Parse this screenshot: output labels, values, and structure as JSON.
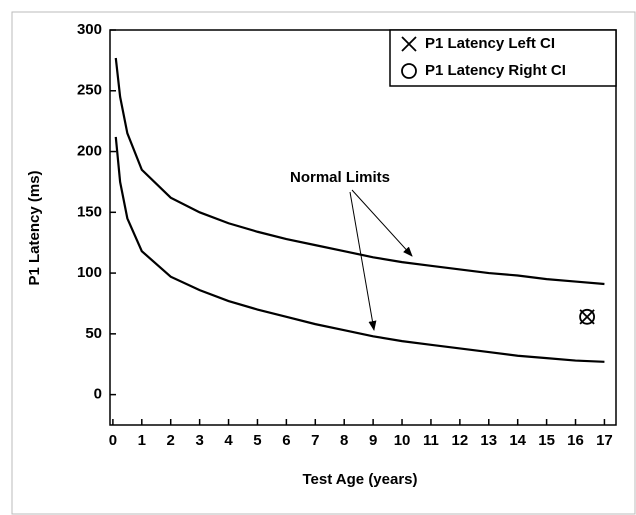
{
  "chart_data": {
    "type": "line",
    "xlabel": "Test Age (years)",
    "ylabel": "P1 Latency (ms)",
    "annotation": "Normal Limits",
    "xlim": [
      -0.1,
      17.4
    ],
    "ylim": [
      -25,
      300
    ],
    "xticks": [
      0,
      1,
      2,
      3,
      4,
      5,
      6,
      7,
      8,
      9,
      10,
      11,
      12,
      13,
      14,
      15,
      16,
      17
    ],
    "yticks": [
      0,
      50,
      100,
      150,
      200,
      250,
      300
    ],
    "legend": "upper right",
    "series": [
      {
        "type": "line",
        "color": "#000000",
        "x": [
          0.1,
          0.25,
          0.5,
          1,
          2,
          3,
          4,
          5,
          6,
          7,
          8,
          9,
          10,
          11,
          12,
          13,
          14,
          15,
          16,
          17
        ],
        "values": [
          277,
          245,
          215,
          185,
          162,
          150,
          141,
          134,
          128,
          123,
          118,
          113,
          109,
          106,
          103,
          100,
          98,
          95,
          93,
          91
        ]
      },
      {
        "type": "line",
        "color": "#000000",
        "x": [
          0.1,
          0.25,
          0.5,
          1,
          2,
          3,
          4,
          5,
          6,
          7,
          8,
          9,
          10,
          11,
          12,
          13,
          14,
          15,
          16,
          17
        ],
        "values": [
          212,
          175,
          145,
          118,
          97,
          86,
          77,
          70,
          64,
          58,
          53,
          48,
          44,
          41,
          38,
          35,
          32,
          30,
          28,
          27
        ]
      },
      {
        "type": "scatter",
        "name": "P1 Latency Left CI",
        "marker": "x",
        "color": "#000000",
        "x": [
          16.4
        ],
        "values": [
          64
        ]
      },
      {
        "type": "scatter",
        "name": "P1 Latency Right CI",
        "marker": "o",
        "color": "#000000",
        "x": [
          16.4
        ],
        "values": [
          64
        ]
      }
    ]
  }
}
